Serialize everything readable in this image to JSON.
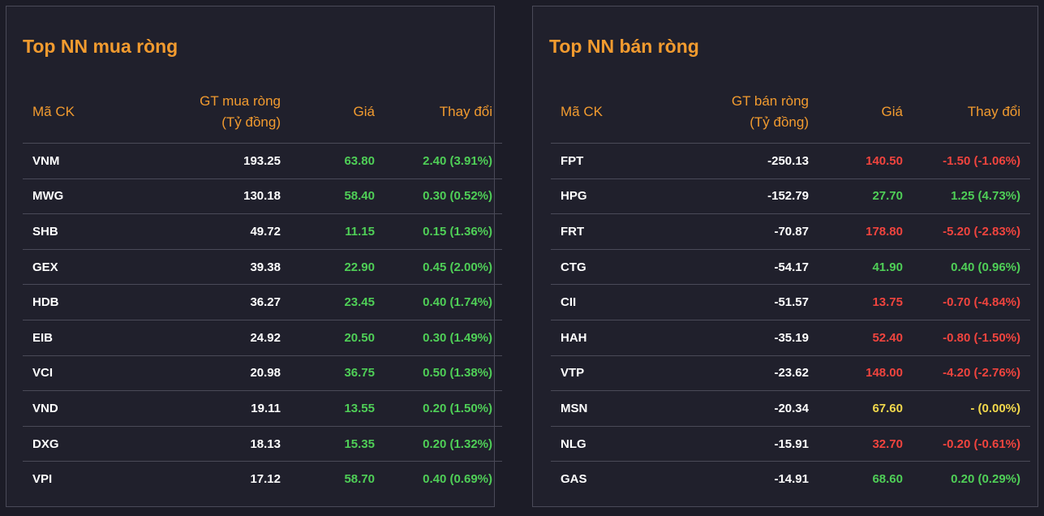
{
  "buy_panel": {
    "title": "Top NN mua ròng",
    "headers": {
      "code": "Mã CK",
      "value_line1": "GT mua ròng",
      "value_line2": "(Tỷ đồng)",
      "price": "Giá",
      "change": "Thay đổi"
    },
    "rows": [
      {
        "code": "VNM",
        "value": "193.25",
        "price": "63.80",
        "change": "2.40 (3.91%)",
        "trend": "up"
      },
      {
        "code": "MWG",
        "value": "130.18",
        "price": "58.40",
        "change": "0.30 (0.52%)",
        "trend": "up"
      },
      {
        "code": "SHB",
        "value": "49.72",
        "price": "11.15",
        "change": "0.15 (1.36%)",
        "trend": "up"
      },
      {
        "code": "GEX",
        "value": "39.38",
        "price": "22.90",
        "change": "0.45 (2.00%)",
        "trend": "up"
      },
      {
        "code": "HDB",
        "value": "36.27",
        "price": "23.45",
        "change": "0.40 (1.74%)",
        "trend": "up"
      },
      {
        "code": "EIB",
        "value": "24.92",
        "price": "20.50",
        "change": "0.30 (1.49%)",
        "trend": "up"
      },
      {
        "code": "VCI",
        "value": "20.98",
        "price": "36.75",
        "change": "0.50 (1.38%)",
        "trend": "up"
      },
      {
        "code": "VND",
        "value": "19.11",
        "price": "13.55",
        "change": "0.20 (1.50%)",
        "trend": "up"
      },
      {
        "code": "DXG",
        "value": "18.13",
        "price": "15.35",
        "change": "0.20 (1.32%)",
        "trend": "up"
      },
      {
        "code": "VPI",
        "value": "17.12",
        "price": "58.70",
        "change": "0.40 (0.69%)",
        "trend": "up"
      }
    ]
  },
  "sell_panel": {
    "title": "Top NN bán ròng",
    "headers": {
      "code": "Mã CK",
      "value_line1": "GT bán ròng",
      "value_line2": "(Tỷ đồng)",
      "price": "Giá",
      "change": "Thay đổi"
    },
    "rows": [
      {
        "code": "FPT",
        "value": "-250.13",
        "price": "140.50",
        "change": "-1.50 (-1.06%)",
        "trend": "down"
      },
      {
        "code": "HPG",
        "value": "-152.79",
        "price": "27.70",
        "change": "1.25 (4.73%)",
        "trend": "up"
      },
      {
        "code": "FRT",
        "value": "-70.87",
        "price": "178.80",
        "change": "-5.20 (-2.83%)",
        "trend": "down"
      },
      {
        "code": "CTG",
        "value": "-54.17",
        "price": "41.90",
        "change": "0.40 (0.96%)",
        "trend": "up"
      },
      {
        "code": "CII",
        "value": "-51.57",
        "price": "13.75",
        "change": "-0.70 (-4.84%)",
        "trend": "down"
      },
      {
        "code": "HAH",
        "value": "-35.19",
        "price": "52.40",
        "change": "-0.80 (-1.50%)",
        "trend": "down"
      },
      {
        "code": "VTP",
        "value": "-23.62",
        "price": "148.00",
        "change": "-4.20 (-2.76%)",
        "trend": "down"
      },
      {
        "code": "MSN",
        "value": "-20.34",
        "price": "67.60",
        "change": "- (0.00%)",
        "trend": "ref"
      },
      {
        "code": "NLG",
        "value": "-15.91",
        "price": "32.70",
        "change": "-0.20 (-0.61%)",
        "trend": "down"
      },
      {
        "code": "GAS",
        "value": "-14.91",
        "price": "68.60",
        "change": "0.20 (0.29%)",
        "trend": "up"
      }
    ]
  },
  "colors": {
    "accent": "#f29b2f",
    "up": "#4fcf57",
    "down": "#f0443e",
    "reference": "#f1d84c",
    "background": "#1c1c27",
    "panel": "#20202c",
    "border": "#4a4a58"
  }
}
